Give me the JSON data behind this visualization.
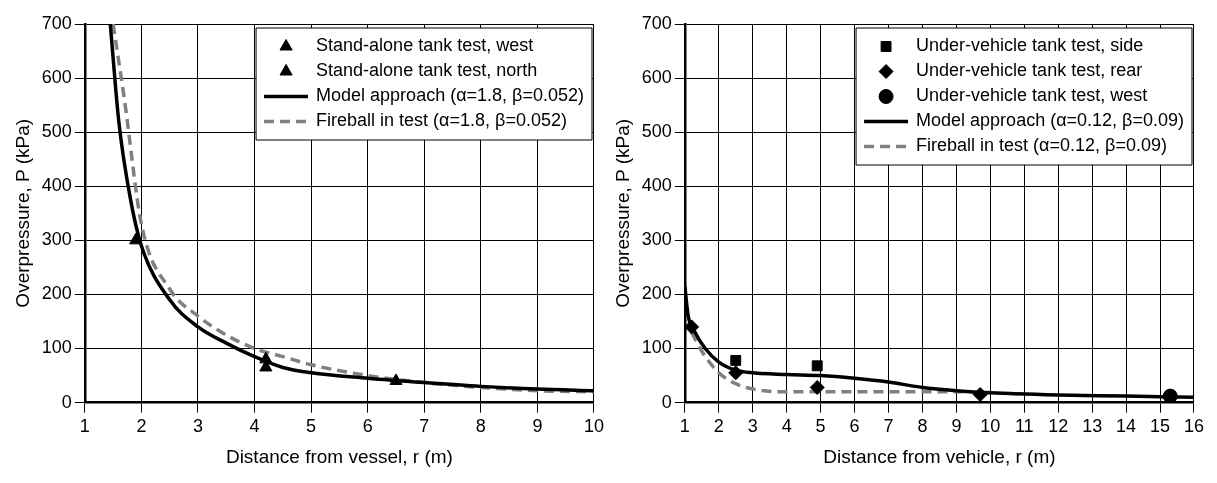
{
  "chart_data": [
    {
      "type": "scatter",
      "xlabel": "Distance from vessel, r (m)",
      "ylabel": "Overpressure, P (kPa)",
      "xlim": [
        1,
        10
      ],
      "xticks": [
        1,
        2,
        3,
        4,
        5,
        6,
        7,
        8,
        9,
        10
      ],
      "ylim": [
        0,
        700
      ],
      "yticks": [
        0,
        100,
        200,
        300,
        400,
        500,
        600,
        700
      ],
      "grid": true,
      "legend": "top right",
      "series": [
        {
          "name": "Stand-alone tank test, west",
          "marker": "triangle",
          "color": "#000000",
          "x": [
            1.9,
            4.2,
            6.5
          ],
          "values": [
            300,
            80,
            40
          ]
        },
        {
          "name": "Stand-alone tank test, north",
          "marker": "triangle",
          "color": "#000000",
          "x": [
            4.2
          ],
          "values": [
            65
          ]
        },
        {
          "name": "Model approach (α=1.8, β=0.052)",
          "type": "line",
          "marker": "none",
          "line_style": "solid",
          "color": "#000000",
          "x": [
            1.45,
            1.6,
            1.8,
            2,
            2.5,
            3,
            3.5,
            4,
            4.5,
            5,
            6,
            7,
            8,
            9,
            10
          ],
          "values": [
            700,
            520,
            380,
            290,
            190,
            140,
            110,
            85,
            65,
            55,
            45,
            37,
            30,
            25,
            22
          ]
        },
        {
          "name": "Fireball in test (α=1.8, β=0.052)",
          "type": "line",
          "marker": "none",
          "line_style": "dashed",
          "color": "#808080",
          "x": [
            1.5,
            1.7,
            2,
            2.5,
            3,
            3.5,
            4,
            4.5,
            5,
            6,
            7,
            8,
            9,
            10
          ],
          "values": [
            700,
            560,
            330,
            210,
            160,
            125,
            100,
            85,
            70,
            50,
            37,
            28,
            22,
            20
          ]
        }
      ]
    },
    {
      "type": "scatter",
      "xlabel": "Distance from vehicle, r (m)",
      "ylabel": "Overpressure, P (kPa)",
      "xlim": [
        1,
        16
      ],
      "xticks": [
        1,
        2,
        3,
        4,
        5,
        6,
        7,
        8,
        9,
        10,
        11,
        12,
        13,
        14,
        15,
        16
      ],
      "ylim": [
        0,
        700
      ],
      "yticks": [
        0,
        100,
        200,
        300,
        400,
        500,
        600,
        700
      ],
      "grid": true,
      "legend": "top right",
      "series": [
        {
          "name": "Under-vehicle tank test, side",
          "marker": "square",
          "color": "#000000",
          "x": [
            2.5,
            4.9
          ],
          "values": [
            78,
            68
          ]
        },
        {
          "name": "Under-vehicle tank test, rear",
          "marker": "diamond",
          "color": "#000000",
          "x": [
            1.2,
            2.5,
            4.9,
            9.7
          ],
          "values": [
            140,
            55,
            28,
            15
          ]
        },
        {
          "name": "Under-vehicle tank test, west",
          "marker": "circle",
          "color": "#000000",
          "x": [
            15.3
          ],
          "values": [
            12
          ]
        },
        {
          "name": "Model approach (α=0.12, β=0.09)",
          "type": "line",
          "marker": "none",
          "line_style": "solid",
          "color": "#000000",
          "x": [
            1,
            1.1,
            1.3,
            1.6,
            2,
            2.5,
            3,
            4,
            5,
            6,
            7,
            8,
            9,
            10,
            12,
            14,
            16
          ],
          "values": [
            215,
            160,
            130,
            100,
            75,
            60,
            55,
            52,
            50,
            45,
            38,
            28,
            22,
            18,
            14,
            12,
            10
          ]
        },
        {
          "name": "Fireball in test (α=0.12, β=0.09)",
          "type": "line",
          "marker": "none",
          "line_style": "dashed",
          "color": "#808080",
          "x": [
            1.2,
            1.5,
            2,
            2.5,
            3,
            4,
            6,
            8,
            9.5
          ],
          "values": [
            130,
            95,
            55,
            35,
            25,
            20,
            20,
            20,
            20
          ]
        }
      ]
    }
  ]
}
